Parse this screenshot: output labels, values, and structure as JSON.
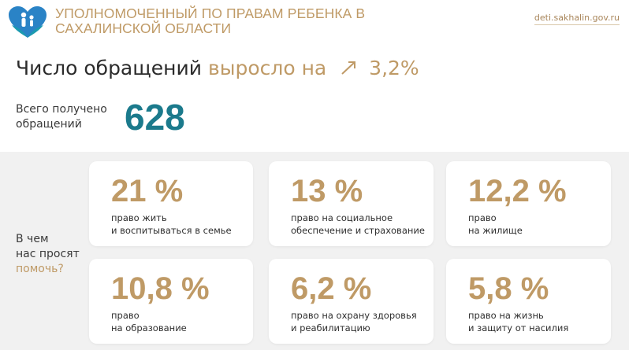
{
  "header": {
    "org_name_line1": "УПОЛНОМОЧЕННЫЙ ПО ПРАВАМ РЕБЕНКА В",
    "org_name_line2": "САХАЛИНСКОЙ ОБЛАСТИ",
    "site": "deti.sakhalin.gov.ru",
    "logo_icon": "heart-family-icon"
  },
  "headline": {
    "part1": "Число обращений",
    "part2": "выросло на",
    "arrow_icon": "trend-up-arrow-icon",
    "value": "3,2%"
  },
  "total": {
    "label_line1": "Всего получено",
    "label_line2": "обращений",
    "value": "628"
  },
  "ask": {
    "line1": "В чем",
    "line2": "нас просят",
    "line3": "помочь?"
  },
  "cards": [
    {
      "percent": "21 %",
      "line1": "право жить",
      "line2": "и воспитываться в семье"
    },
    {
      "percent": "13 %",
      "line1": "право на социальное",
      "line2": "обеспечение и страхование"
    },
    {
      "percent": "12,2 %",
      "line1": "право",
      "line2": "на жилище"
    },
    {
      "percent": "10,8 %",
      "line1": "право",
      "line2": "на образование"
    },
    {
      "percent": "6,2 %",
      "line1": "право на охрану здоровья",
      "line2": "и реабилитацию"
    },
    {
      "percent": "5,8 %",
      "line1": "право на жизнь",
      "line2": "и защиту от насилия"
    }
  ],
  "colors": {
    "accent_gold": "#bf9a66",
    "total_teal": "#1b7a8c",
    "logo_blue": "#2a83c6"
  }
}
